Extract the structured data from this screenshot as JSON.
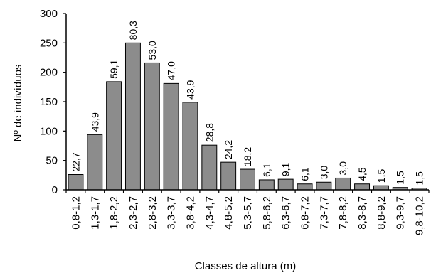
{
  "chart_data": {
    "type": "bar",
    "xlabel": "Classes de altura (m)",
    "ylabel": "Nº de indivíduos",
    "ylim": [
      0,
      300
    ],
    "yticks": [
      0,
      50,
      100,
      150,
      200,
      250,
      300
    ],
    "categories": [
      "0,8-1,2",
      "1,3-1,7",
      "1,8-2,2",
      "2,3-2,7",
      "2,8-3,2",
      "3,3-3,7",
      "3,8-4,2",
      "4,3-4,7",
      "4,8-5,2",
      "5,3-5,7",
      "5,8-6,2",
      "6,3-6,7",
      "6,8-7,2",
      "7,3-7,7",
      "7,8-8,2",
      "8,3-8,7",
      "8,8-9,2",
      "9,3-9,7",
      "9,8-10,2"
    ],
    "values": [
      26,
      94,
      184,
      250,
      216,
      181,
      149,
      76,
      47,
      35,
      17,
      18,
      10,
      13,
      20,
      10,
      7,
      4,
      3
    ],
    "data_labels": [
      "22,7",
      "43,9",
      "59,1",
      "80,3",
      "53,0",
      "47,0",
      "43,9",
      "28,8",
      "24,2",
      "18,2",
      "6,1",
      "9,1",
      "6,1",
      "3,0",
      "3,0",
      "4,5",
      "1,5",
      "1,5",
      "1,5"
    ],
    "grid": false,
    "legend": "none",
    "colors": {
      "bar_fill": "#8c8c8c",
      "bar_stroke": "#000000"
    }
  }
}
